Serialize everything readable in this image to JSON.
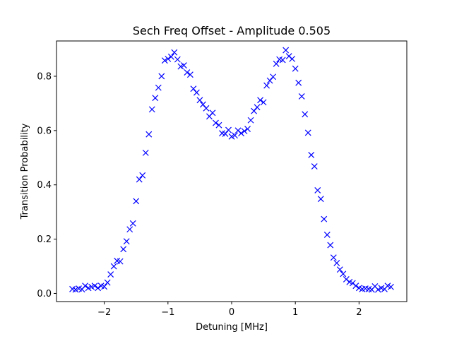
{
  "chart_data": {
    "type": "scatter",
    "title": "Sech Freq Offset - Amplitude 0.505",
    "xlabel": "Detuning [MHz]",
    "ylabel": "Transition Probability",
    "xlim": [
      -2.75,
      2.75
    ],
    "ylim": [
      -0.03,
      0.93
    ],
    "xticks": [
      -2,
      -1,
      0,
      1,
      2
    ],
    "xtick_labels": [
      "−2",
      "−1",
      "0",
      "1",
      "2"
    ],
    "yticks": [
      0.0,
      0.2,
      0.4,
      0.6,
      0.8
    ],
    "ytick_labels": [
      "0.0",
      "0.2",
      "0.4",
      "0.6",
      "0.8"
    ],
    "grid": false,
    "marker": "x",
    "color": "#0000ff",
    "x": [
      -2.5,
      -2.45,
      -2.4,
      -2.35,
      -2.3,
      -2.25,
      -2.2,
      -2.15,
      -2.1,
      -2.05,
      -2.0,
      -1.95,
      -1.9,
      -1.85,
      -1.8,
      -1.75,
      -1.7,
      -1.65,
      -1.6,
      -1.55,
      -1.5,
      -1.45,
      -1.4,
      -1.35,
      -1.3,
      -1.25,
      -1.2,
      -1.15,
      -1.1,
      -1.05,
      -1.0,
      -0.95,
      -0.9,
      -0.85,
      -0.8,
      -0.75,
      -0.7,
      -0.65,
      -0.6,
      -0.55,
      -0.5,
      -0.45,
      -0.4,
      -0.35,
      -0.3,
      -0.25,
      -0.2,
      -0.15,
      -0.1,
      -0.05,
      0.0,
      0.05,
      0.1,
      0.15,
      0.2,
      0.25,
      0.3,
      0.35,
      0.4,
      0.45,
      0.5,
      0.55,
      0.6,
      0.65,
      0.7,
      0.75,
      0.8,
      0.85,
      0.9,
      0.95,
      1.0,
      1.05,
      1.1,
      1.15,
      1.2,
      1.25,
      1.3,
      1.35,
      1.4,
      1.45,
      1.5,
      1.55,
      1.6,
      1.65,
      1.7,
      1.75,
      1.8,
      1.85,
      1.9,
      1.95,
      2.0,
      2.05,
      2.1,
      2.15,
      2.2,
      2.25,
      2.3,
      2.35,
      2.4,
      2.45,
      2.5
    ],
    "y": [
      0.016,
      0.014,
      0.018,
      0.015,
      0.028,
      0.02,
      0.024,
      0.028,
      0.02,
      0.028,
      0.025,
      0.04,
      0.07,
      0.1,
      0.12,
      0.118,
      0.163,
      0.192,
      0.236,
      0.258,
      0.34,
      0.42,
      0.435,
      0.518,
      0.586,
      0.678,
      0.72,
      0.758,
      0.8,
      0.858,
      0.864,
      0.872,
      0.888,
      0.862,
      0.836,
      0.84,
      0.814,
      0.806,
      0.754,
      0.74,
      0.712,
      0.696,
      0.682,
      0.652,
      0.665,
      0.628,
      0.62,
      0.59,
      0.588,
      0.602,
      0.578,
      0.582,
      0.6,
      0.59,
      0.598,
      0.606,
      0.638,
      0.672,
      0.686,
      0.712,
      0.704,
      0.766,
      0.784,
      0.798,
      0.846,
      0.862,
      0.86,
      0.896,
      0.874,
      0.864,
      0.828,
      0.776,
      0.726,
      0.66,
      0.592,
      0.51,
      0.468,
      0.38,
      0.348,
      0.274,
      0.216,
      0.178,
      0.132,
      0.112,
      0.088,
      0.072,
      0.052,
      0.042,
      0.038,
      0.028,
      0.02,
      0.016,
      0.018,
      0.016,
      0.014,
      0.026,
      0.014,
      0.02,
      0.016,
      0.028,
      0.024
    ]
  }
}
